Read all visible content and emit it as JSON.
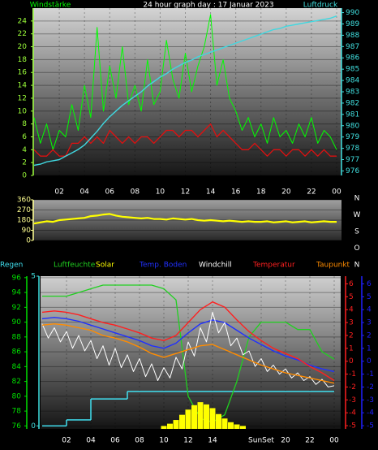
{
  "chart_data": [
    {
      "type": "line",
      "title": "24 hour graph day : 17 Januar 2023",
      "ylabel": "Windstärke",
      "y2label": "Luftdruck",
      "x": [
        0,
        0.5,
        1,
        1.5,
        2,
        2.5,
        3,
        3.5,
        4,
        4.5,
        5,
        5.5,
        6,
        6.5,
        7,
        7.5,
        8,
        8.5,
        9,
        9.5,
        10,
        10.5,
        11,
        11.5,
        12,
        12.5,
        13,
        13.5,
        14,
        14.5,
        15,
        15.5,
        16,
        16.5,
        17,
        17.5,
        18,
        18.5,
        19,
        19.5,
        20,
        20.5,
        21,
        21.5,
        22,
        22.5,
        23,
        23.5,
        24
      ],
      "xlim": [
        0,
        24
      ],
      "xticks": [
        {
          "value": 2,
          "label": "02"
        },
        {
          "value": 4,
          "label": "04"
        },
        {
          "value": 6,
          "label": "06"
        },
        {
          "value": 8,
          "label": "08"
        },
        10,
        12,
        14,
        16,
        18,
        20,
        22,
        {
          "value": 24,
          "label": "00"
        }
      ],
      "ylim": [
        0,
        26
      ],
      "yticks": [
        0,
        2,
        4,
        6,
        8,
        10,
        12,
        14,
        16,
        18,
        20,
        22,
        24
      ],
      "y2lim": [
        975.6,
        990.4
      ],
      "y2ticks": [
        976,
        977,
        978,
        979,
        980,
        981,
        982,
        983,
        984,
        985,
        986,
        987,
        988,
        989,
        990
      ],
      "grid": true,
      "axis_colors": {
        "y": "#9cff3a",
        "y2": "#40e0e0",
        "x": "#ffffff"
      },
      "series": [
        {
          "color": "#00ff00",
          "values": [
            9,
            5,
            8,
            4,
            7,
            6,
            11,
            7,
            14,
            9,
            23,
            10,
            17,
            12,
            20,
            11,
            14,
            10,
            18,
            11,
            13,
            21,
            15,
            12,
            19,
            13,
            17,
            20,
            25,
            14,
            18,
            12,
            10,
            7,
            9,
            6,
            8,
            5,
            9,
            6,
            7,
            5,
            8,
            6,
            9,
            5,
            7,
            6,
            4
          ]
        },
        {
          "color": "#e01010",
          "values": [
            4,
            3,
            3,
            4,
            3,
            3,
            5,
            5,
            6,
            5,
            6,
            5,
            7,
            6,
            5,
            6,
            5,
            6,
            6,
            5,
            6,
            7,
            7,
            6,
            7,
            7,
            6,
            7,
            8,
            6,
            7,
            6,
            5,
            4,
            4,
            5,
            4,
            3,
            4,
            4,
            3,
            4,
            4,
            3,
            4,
            3,
            4,
            3,
            3
          ]
        },
        {
          "color": "#40d8e0",
          "axis": "y2",
          "values": [
            976.5,
            976.6,
            976.8,
            976.9,
            977.0,
            977.3,
            977.6,
            977.9,
            978.3,
            978.9,
            979.5,
            980.2,
            980.8,
            981.3,
            981.8,
            982.2,
            982.6,
            983.0,
            983.5,
            983.9,
            984.3,
            984.6,
            985.0,
            985.3,
            985.6,
            985.8,
            986.1,
            986.3,
            986.5,
            986.7,
            986.9,
            987.1,
            987.3,
            987.5,
            987.7,
            987.9,
            988.1,
            988.3,
            988.5,
            988.6,
            988.8,
            988.9,
            989.0,
            989.1,
            989.2,
            989.3,
            989.4,
            989.5,
            989.7
          ]
        }
      ]
    },
    {
      "type": "line",
      "x": [
        0,
        0.5,
        1,
        1.5,
        2,
        2.5,
        3,
        3.5,
        4,
        4.5,
        5,
        5.5,
        6,
        6.5,
        7,
        7.5,
        8,
        8.5,
        9,
        9.5,
        10,
        10.5,
        11,
        11.5,
        12,
        12.5,
        13,
        13.5,
        14,
        14.5,
        15,
        15.5,
        16,
        16.5,
        17,
        17.5,
        18,
        18.5,
        19,
        19.5,
        20,
        20.5,
        21,
        21.5,
        22,
        22.5,
        23,
        23.5,
        24
      ],
      "xlim": [
        0,
        24
      ],
      "ylim": [
        0,
        360
      ],
      "yticks": [
        0,
        90,
        180,
        270,
        360
      ],
      "grid": true,
      "axis_colors": {
        "y": "#ffff90"
      },
      "direction_labels": [
        "N",
        "W",
        "S",
        "O",
        "N"
      ],
      "series": [
        {
          "color": "#ffff00",
          "values": [
            150,
            160,
            170,
            165,
            180,
            185,
            190,
            195,
            200,
            215,
            220,
            230,
            235,
            220,
            210,
            205,
            200,
            195,
            200,
            190,
            190,
            185,
            195,
            190,
            185,
            190,
            180,
            175,
            180,
            175,
            170,
            175,
            170,
            165,
            170,
            165,
            165,
            170,
            160,
            165,
            170,
            160,
            165,
            170,
            160,
            165,
            170,
            165,
            165
          ]
        }
      ]
    },
    {
      "type": "line",
      "x": [
        0,
        1,
        2,
        3,
        4,
        5,
        6,
        7,
        8,
        9,
        10,
        11,
        12,
        13,
        14,
        15,
        16,
        17,
        18,
        19,
        20,
        21,
        22,
        23,
        24
      ],
      "xlim": [
        0,
        24
      ],
      "xticks": [
        {
          "value": 2,
          "label": "02"
        },
        {
          "value": 4,
          "label": "04"
        },
        {
          "value": 6,
          "label": "06"
        },
        {
          "value": 8,
          "label": "08"
        },
        10,
        12,
        14,
        {
          "value": 18,
          "label": "SunSet"
        },
        20,
        22,
        {
          "value": 24,
          "label": "00"
        }
      ],
      "ylim": [
        75.6,
        96.2
      ],
      "yticks": [
        76,
        78,
        80,
        82,
        84,
        86,
        88,
        90,
        92,
        94,
        96
      ],
      "y2lim": [
        -5.25,
        6.6
      ],
      "y2ticks": [
        -5,
        -4,
        -3,
        -2,
        -1,
        0,
        1,
        2,
        3,
        4,
        5,
        6
      ],
      "y3lim": [
        -5.25,
        6.6
      ],
      "y3ticks": [
        -5,
        -4,
        -3,
        -2,
        -1,
        0,
        1,
        2,
        3,
        4,
        5,
        6
      ],
      "y4lim": [
        -0.1,
        5
      ],
      "y4ticks": [
        0,
        5
      ],
      "grid": true,
      "axis_colors": {
        "y": "#00e000",
        "y2": "#ff2020",
        "y3": "#2020ff",
        "y4": "#40e0e0",
        "x": "#ffffff"
      },
      "series": [
        {
          "name": "Regen",
          "color": "#40e0f0",
          "axis": "y4",
          "type": "step",
          "values": [
            0,
            0,
            0.2,
            0.2,
            0.9,
            0.9,
            0.9,
            1.15,
            1.15,
            1.15,
            1.15,
            1.15,
            1.15,
            1.15,
            1.15,
            1.15,
            1.15,
            1.15,
            1.15,
            1.15,
            1.15,
            1.15,
            1.15,
            1.15,
            1.15
          ]
        },
        {
          "name": "Luftfeuchte",
          "color": "#20d020",
          "values": [
            93.5,
            93.5,
            93.5,
            94,
            94.5,
            95,
            95,
            95,
            95,
            95,
            94.5,
            93,
            80,
            77,
            76.5,
            77.5,
            82,
            88,
            90,
            90,
            90,
            89,
            89,
            86,
            85
          ]
        },
        {
          "name": "Solar",
          "color": "#ffff00",
          "type": "bar",
          "x": [
            10,
            10.5,
            11,
            11.5,
            12,
            12.5,
            13,
            13.5,
            14,
            14.5,
            15,
            15.5,
            16,
            16.5
          ],
          "values": [
            76,
            76.3,
            76.8,
            77.5,
            78.2,
            78.8,
            79.2,
            78.9,
            78.4,
            77.6,
            77.0,
            76.5,
            76.2,
            76
          ]
        },
        {
          "name": "Temp. Boden",
          "color": "#2030ff",
          "axis": "y3",
          "values": [
            3.3,
            3.4,
            3.3,
            3.1,
            2.8,
            2.5,
            2.2,
            1.9,
            1.6,
            1.2,
            1.0,
            1.4,
            2.2,
            2.9,
            3.2,
            3.0,
            2.4,
            1.8,
            1.3,
            0.8,
            0.4,
            0.1,
            -0.3,
            -0.6,
            -0.8
          ]
        },
        {
          "name": "Windchill",
          "color": "#ffffff",
          "axis": "y2",
          "x": [
            0,
            0.5,
            1,
            1.5,
            2,
            2.5,
            3,
            3.5,
            4,
            4.5,
            5,
            5.5,
            6,
            6.5,
            7,
            7.5,
            8,
            8.5,
            9,
            9.5,
            10,
            10.5,
            11,
            11.5,
            12,
            12.5,
            13,
            13.5,
            14,
            14.5,
            15,
            15.5,
            16,
            16.5,
            17,
            17.5,
            18,
            18.5,
            19,
            19.5,
            20,
            20.5,
            21,
            21.5,
            22,
            22.5,
            23,
            23.5,
            24
          ],
          "values": [
            2.9,
            1.8,
            2.6,
            1.5,
            2.3,
            1.0,
            2.0,
            0.8,
            1.6,
            0.2,
            1.2,
            -0.3,
            1.0,
            -0.5,
            0.5,
            -0.8,
            0.2,
            -1.2,
            -0.2,
            -1.5,
            -0.5,
            -1.3,
            0.3,
            -0.6,
            1.5,
            0.4,
            2.6,
            1.5,
            3.8,
            2.2,
            3.0,
            1.2,
            1.8,
            0.5,
            0.8,
            -0.4,
            0.2,
            -0.8,
            -0.3,
            -1.0,
            -0.6,
            -1.3,
            -0.9,
            -1.5,
            -1.2,
            -1.8,
            -1.4,
            -2.0,
            -1.9
          ]
        },
        {
          "name": "Temperatur",
          "color": "#ff2020",
          "axis": "y2",
          "values": [
            3.8,
            3.9,
            3.8,
            3.6,
            3.3,
            3.0,
            2.8,
            2.5,
            2.2,
            1.8,
            1.6,
            2.0,
            3.0,
            4.0,
            4.6,
            4.2,
            3.2,
            2.3,
            1.6,
            1.0,
            0.6,
            0.2,
            -0.4,
            -0.9,
            -1.5
          ]
        },
        {
          "name": "Taupunkt",
          "color": "#ff8c00",
          "axis": "y2",
          "values": [
            2.8,
            2.9,
            2.8,
            2.6,
            2.4,
            2.0,
            1.8,
            1.5,
            1.1,
            0.6,
            0.3,
            0.6,
            0.9,
            1.2,
            1.3,
            0.9,
            0.5,
            0.1,
            -0.3,
            -0.6,
            -0.9,
            -1.1,
            -1.3,
            -1.5,
            -1.7
          ]
        }
      ]
    }
  ]
}
